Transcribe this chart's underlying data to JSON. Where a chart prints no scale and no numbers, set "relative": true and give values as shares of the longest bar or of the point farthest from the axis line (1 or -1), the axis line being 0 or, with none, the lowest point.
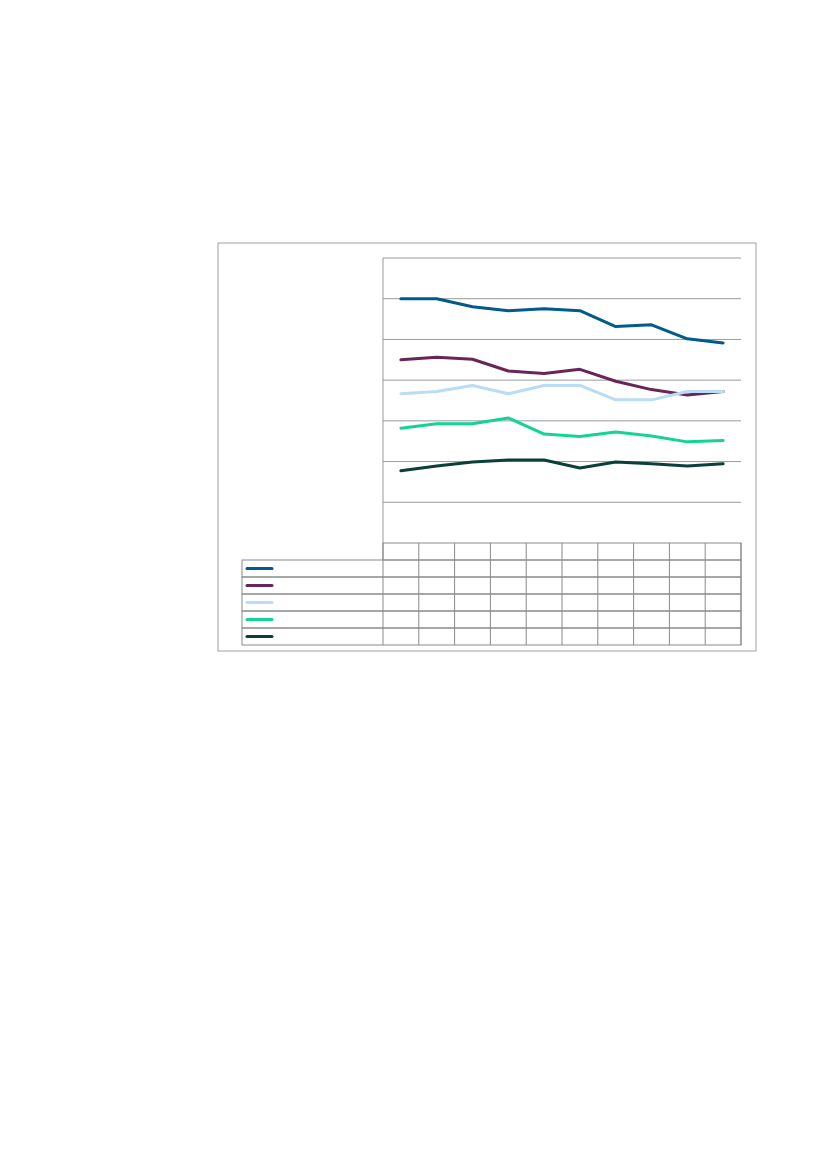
{
  "chart_data": {
    "type": "line",
    "relative": true,
    "categories": [
      null,
      null,
      null,
      null,
      null,
      null,
      null,
      null,
      null,
      null
    ],
    "series": [
      {
        "color": "#005a8c",
        "values": [
          1,
          1,
          0.967,
          0.951,
          0.959,
          0.951,
          0.886,
          0.893,
          0.836,
          0.819
        ]
      },
      {
        "color": "#6b2458",
        "values": [
          0.75,
          0.76,
          0.752,
          0.704,
          0.694,
          0.711,
          0.662,
          0.628,
          0.606,
          0.62
        ]
      },
      {
        "color": "#b9dcf7",
        "values": [
          0.611,
          0.62,
          0.645,
          0.611,
          0.645,
          0.645,
          0.586,
          0.586,
          0.62,
          0.62
        ]
      },
      {
        "color": "#14d494",
        "values": [
          0.47,
          0.488,
          0.488,
          0.512,
          0.446,
          0.436,
          0.454,
          0.438,
          0.414,
          0.42
        ]
      },
      {
        "color": "#0a4038",
        "values": [
          0.296,
          0.315,
          0.332,
          0.34,
          0.34,
          0.307,
          0.332,
          0.324,
          0.315,
          0.324
        ]
      }
    ],
    "grid": "y",
    "line_style": "solid",
    "marker": "none"
  }
}
